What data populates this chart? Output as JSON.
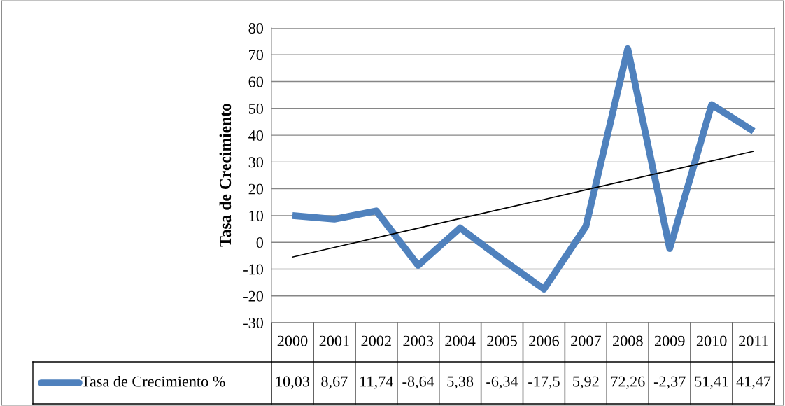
{
  "chart_data": {
    "type": "line",
    "ylabel": "Tasa de Crecimiento",
    "categories": [
      "2000",
      "2001",
      "2002",
      "2003",
      "2004",
      "2005",
      "2006",
      "2007",
      "2008",
      "2009",
      "2010",
      "2011"
    ],
    "series": [
      {
        "name": "Tasa de Crecimiento %",
        "color": "#4f81bd",
        "values": [
          10.03,
          8.67,
          11.74,
          -8.64,
          5.38,
          -6.34,
          -17.5,
          5.92,
          72.26,
          -2.37,
          51.41,
          41.47
        ],
        "value_labels": [
          "10,03",
          "8,67",
          "11,74",
          "-8,64",
          "5,38",
          "-6,34",
          "-17,5",
          "5,92",
          "72,26",
          "-2,37",
          "51,41",
          "41,47"
        ]
      },
      {
        "type": "line",
        "color": "#000000",
        "values": [
          -5.5,
          -1.9,
          1.7,
          5.3,
          8.9,
          12.5,
          16.0,
          19.6,
          23.2,
          26.8,
          30.4,
          34.0
        ]
      }
    ],
    "ylim": [
      -30,
      80
    ],
    "yticks": [
      -30,
      -20,
      -10,
      0,
      10,
      20,
      30,
      40,
      50,
      60,
      70,
      80
    ],
    "grid": "y"
  }
}
